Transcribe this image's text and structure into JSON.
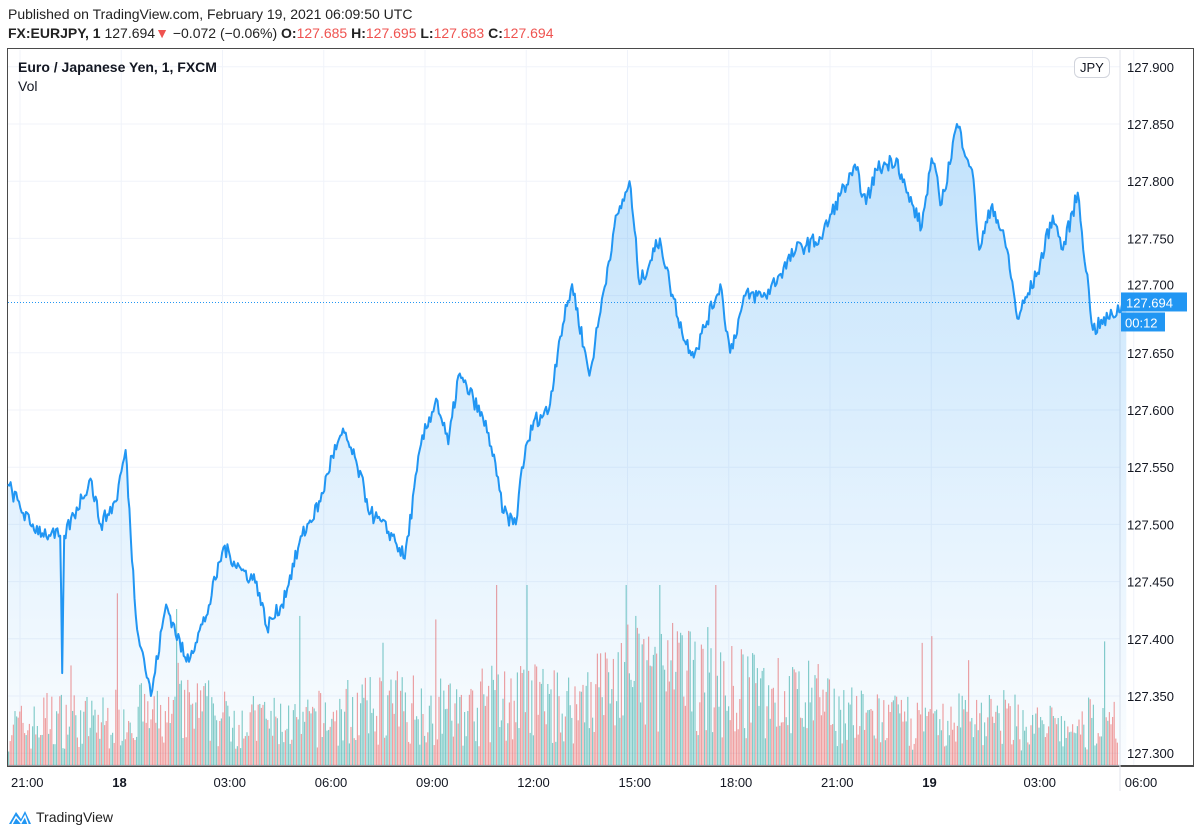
{
  "header": {
    "published": "Published on TradingView.com, February 19, 2021 06:09:50 UTC",
    "symbol": "FX:EURJPY, 1",
    "last": "127.694",
    "change": "−0.072 (−0.06%)",
    "o_label": "O:",
    "o": "127.685",
    "h_label": "H:",
    "h": "127.695",
    "l_label": "L:",
    "l": "127.683",
    "c_label": "C:",
    "c": "127.694"
  },
  "legend": {
    "title": "Euro / Japanese Yen, 1, FXCM",
    "vol": "Vol"
  },
  "currency_button": "JPY",
  "current_price_label": "127.694",
  "countdown": "00:12",
  "brand": "TradingView",
  "colors": {
    "line": "#2196f3",
    "up_vol": "#26a69a",
    "down_vol": "#ef5350",
    "red": "#ef5350"
  },
  "chart_data": {
    "type": "area",
    "x_units": "hours since Feb 17 21:00 UTC",
    "ylim": [
      127.28,
      127.92
    ],
    "y_ticks": [
      "127.300",
      "127.350",
      "127.400",
      "127.450",
      "127.500",
      "127.550",
      "127.600",
      "127.650",
      "127.700",
      "127.750",
      "127.800",
      "127.850",
      "127.900"
    ],
    "x_ticks": [
      {
        "h": 0,
        "label": "21:00"
      },
      {
        "h": 3,
        "label": "18",
        "bold": true
      },
      {
        "h": 6,
        "label": "03:00"
      },
      {
        "h": 9,
        "label": "06:00"
      },
      {
        "h": 12,
        "label": "09:00"
      },
      {
        "h": 15,
        "label": "12:00"
      },
      {
        "h": 18,
        "label": "15:00"
      },
      {
        "h": 21,
        "label": "18:00"
      },
      {
        "h": 24,
        "label": "21:00"
      },
      {
        "h": 27,
        "label": "19",
        "bold": true
      },
      {
        "h": 30,
        "label": "03:00"
      },
      {
        "h": 33,
        "label": "06:00"
      }
    ],
    "current_price": 127.694,
    "price_points": [
      [
        -0.36,
        127.535
      ],
      [
        0.3,
        127.5
      ],
      [
        0.9,
        127.49
      ],
      [
        1.19,
        127.49
      ],
      [
        1.25,
        127.37
      ],
      [
        1.31,
        127.49
      ],
      [
        2.09,
        127.54
      ],
      [
        2.39,
        127.5
      ],
      [
        2.84,
        127.52
      ],
      [
        3.13,
        127.565
      ],
      [
        3.43,
        127.42
      ],
      [
        3.88,
        127.35
      ],
      [
        4.33,
        127.43
      ],
      [
        4.93,
        127.38
      ],
      [
        5.52,
        127.42
      ],
      [
        6.03,
        127.48
      ],
      [
        6.57,
        127.46
      ],
      [
        7.01,
        127.45
      ],
      [
        7.31,
        127.41
      ],
      [
        7.76,
        127.43
      ],
      [
        8.36,
        127.49
      ],
      [
        8.9,
        127.52
      ],
      [
        9.25,
        127.56
      ],
      [
        9.61,
        127.58
      ],
      [
        10,
        127.55
      ],
      [
        10.39,
        127.51
      ],
      [
        11.04,
        127.49
      ],
      [
        11.4,
        127.47
      ],
      [
        11.88,
        127.57
      ],
      [
        12.33,
        127.61
      ],
      [
        12.69,
        127.57
      ],
      [
        12.99,
        127.63
      ],
      [
        13.43,
        127.61
      ],
      [
        13.88,
        127.58
      ],
      [
        14.33,
        127.51
      ],
      [
        14.69,
        127.5
      ],
      [
        14.87,
        127.55
      ],
      [
        15.22,
        127.59
      ],
      [
        15.67,
        127.6
      ],
      [
        15.97,
        127.66
      ],
      [
        16.36,
        127.71
      ],
      [
        16.87,
        127.63
      ],
      [
        17.16,
        127.68
      ],
      [
        17.61,
        127.76
      ],
      [
        18.06,
        127.8
      ],
      [
        18.36,
        127.71
      ],
      [
        18.96,
        127.75
      ],
      [
        19.25,
        127.71
      ],
      [
        19.7,
        127.66
      ],
      [
        20,
        127.65
      ],
      [
        20.75,
        127.71
      ],
      [
        21.04,
        127.65
      ],
      [
        21.49,
        127.7
      ],
      [
        22.09,
        127.7
      ],
      [
        22.99,
        127.74
      ],
      [
        23.73,
        127.75
      ],
      [
        24.33,
        127.79
      ],
      [
        24.78,
        127.81
      ],
      [
        25.07,
        127.78
      ],
      [
        25.37,
        127.81
      ],
      [
        25.97,
        127.82
      ],
      [
        26.27,
        127.79
      ],
      [
        26.72,
        127.76
      ],
      [
        27.01,
        127.82
      ],
      [
        27.31,
        127.78
      ],
      [
        27.76,
        127.85
      ],
      [
        28.21,
        127.81
      ],
      [
        28.42,
        127.74
      ],
      [
        28.81,
        127.78
      ],
      [
        29.25,
        127.74
      ],
      [
        29.55,
        127.68
      ],
      [
        30.15,
        127.72
      ],
      [
        30.6,
        127.77
      ],
      [
        30.9,
        127.74
      ],
      [
        31.34,
        127.79
      ],
      [
        31.79,
        127.67
      ],
      [
        32.24,
        127.68
      ],
      [
        32.78,
        127.694
      ]
    ],
    "volume_hourly_avg": [
      25,
      30,
      28,
      32,
      30,
      35,
      30,
      28,
      27,
      30,
      35,
      38,
      36,
      34,
      40,
      42,
      38,
      50,
      60,
      58,
      55,
      48,
      45,
      42,
      35,
      30,
      28,
      25,
      32,
      30,
      25,
      22,
      28,
      35
    ],
    "volume_max": 100
  }
}
